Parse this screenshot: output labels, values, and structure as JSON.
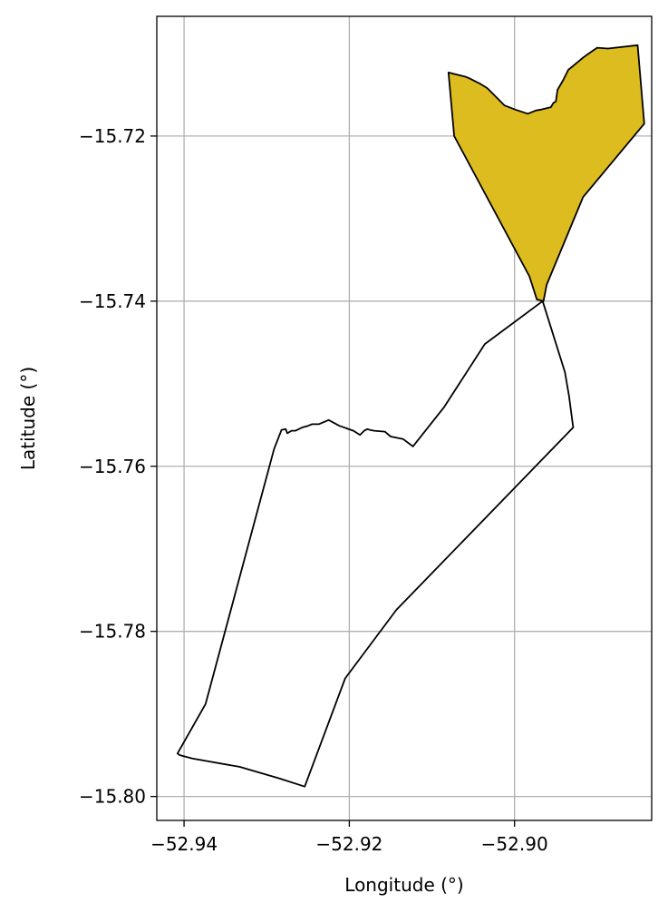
{
  "chart_data": {
    "type": "map",
    "xlabel": "Longitude (°)",
    "ylabel": "Latitude (°)",
    "xlim": [
      -52.9433,
      -52.8834
    ],
    "ylim": [
      -15.8029,
      -15.7055
    ],
    "grid": true,
    "x_ticks": [
      {
        "value": -52.94,
        "label": "−52.94"
      },
      {
        "value": -52.92,
        "label": "−52.92"
      },
      {
        "value": -52.9,
        "label": "−52.90"
      }
    ],
    "y_ticks": [
      {
        "value": -15.72,
        "label": "−15.72"
      },
      {
        "value": -15.74,
        "label": "−15.74"
      },
      {
        "value": -15.76,
        "label": "−15.76"
      },
      {
        "value": -15.78,
        "label": "−15.78"
      },
      {
        "value": -15.8,
        "label": "−15.80"
      }
    ],
    "colors": {
      "highlight_fill": "#DDBC1F",
      "outline": "#000000",
      "grid": "#B0B0B0",
      "background": "#ffffff"
    },
    "regions": [
      {
        "highlighted": false,
        "coordinates": [
          [
            -52.8966,
            -15.74
          ],
          [
            -52.9036,
            -15.7452
          ],
          [
            -52.9085,
            -15.7528
          ],
          [
            -52.9123,
            -15.7576
          ],
          [
            -52.9135,
            -15.7567
          ],
          [
            -52.915,
            -15.7564
          ],
          [
            -52.9157,
            -15.7558
          ],
          [
            -52.917,
            -15.7557
          ],
          [
            -52.9175,
            -15.7556
          ],
          [
            -52.9178,
            -15.7555
          ],
          [
            -52.9182,
            -15.7557
          ],
          [
            -52.9187,
            -15.7562
          ],
          [
            -52.9195,
            -15.7557
          ],
          [
            -52.9212,
            -15.7551
          ],
          [
            -52.9225,
            -15.7544
          ],
          [
            -52.9237,
            -15.7549
          ],
          [
            -52.9245,
            -15.7549
          ],
          [
            -52.925,
            -15.7551
          ],
          [
            -52.9257,
            -15.7553
          ],
          [
            -52.9265,
            -15.7557
          ],
          [
            -52.927,
            -15.7557
          ],
          [
            -52.9275,
            -15.756
          ],
          [
            -52.9277,
            -15.7555
          ],
          [
            -52.9282,
            -15.7556
          ],
          [
            -52.9291,
            -15.7579
          ],
          [
            -52.9374,
            -15.7888
          ],
          [
            -52.9408,
            -15.7948
          ],
          [
            -52.9405,
            -15.795
          ],
          [
            -52.939,
            -15.7954
          ],
          [
            -52.9333,
            -15.7964
          ],
          [
            -52.9285,
            -15.7978
          ],
          [
            -52.9254,
            -15.7988
          ],
          [
            -52.9205,
            -15.7857
          ],
          [
            -52.9143,
            -15.7774
          ],
          [
            -52.8929,
            -15.7553
          ],
          [
            -52.8934,
            -15.7515
          ],
          [
            -52.8939,
            -15.7486
          ],
          [
            -52.8966,
            -15.74
          ]
        ]
      },
      {
        "highlighted": true,
        "coordinates": [
          [
            -52.908,
            -15.7123
          ],
          [
            -52.9073,
            -15.72
          ],
          [
            -52.8982,
            -15.737
          ],
          [
            -52.8973,
            -15.7398
          ],
          [
            -52.8965,
            -15.74
          ],
          [
            -52.8961,
            -15.738
          ],
          [
            -52.8917,
            -15.7274
          ],
          [
            -52.8843,
            -15.7185
          ],
          [
            -52.8851,
            -15.709
          ],
          [
            -52.8887,
            -15.7094
          ],
          [
            -52.89,
            -15.7093
          ],
          [
            -52.8913,
            -15.7102
          ],
          [
            -52.8917,
            -15.7105
          ],
          [
            -52.8935,
            -15.712
          ],
          [
            -52.8941,
            -15.7132
          ],
          [
            -52.8948,
            -15.7144
          ],
          [
            -52.895,
            -15.7158
          ],
          [
            -52.8953,
            -15.716
          ],
          [
            -52.8956,
            -15.7165
          ],
          [
            -52.8968,
            -15.7168
          ],
          [
            -52.8974,
            -15.7169
          ],
          [
            -52.8984,
            -15.7173
          ],
          [
            -52.8999,
            -15.7168
          ],
          [
            -52.9012,
            -15.7163
          ],
          [
            -52.9026,
            -15.7149
          ],
          [
            -52.9033,
            -15.7142
          ],
          [
            -52.9041,
            -15.7137
          ],
          [
            -52.9055,
            -15.713
          ],
          [
            -52.906,
            -15.7128
          ],
          [
            -52.908,
            -15.7123
          ]
        ]
      }
    ]
  }
}
